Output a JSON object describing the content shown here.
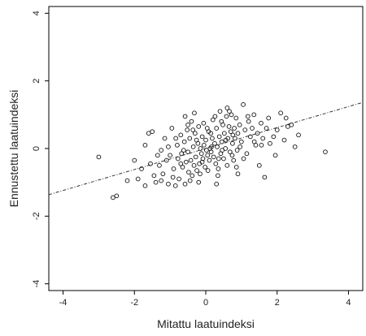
{
  "chart_data": {
    "type": "scatter",
    "title": "",
    "xlabel": "Mitattu laatuindeksi",
    "ylabel": "Ennustettu laatuindeksi",
    "xlim": [
      -4.4,
      4.4
    ],
    "ylim": [
      -4.2,
      4.2
    ],
    "xticks": [
      -4,
      -2,
      0,
      2,
      4
    ],
    "yticks": [
      -4,
      -2,
      0,
      2,
      4
    ],
    "xtick_labels": [
      "-4",
      "-2",
      "0",
      "2",
      "4"
    ],
    "ytick_labels": [
      "-4",
      "-2",
      "0",
      "2",
      "4"
    ],
    "grid": false,
    "legend": "none",
    "fit_line": {
      "slope": 0.31,
      "intercept": 0.0,
      "style": "dash-dot"
    },
    "points": [
      [
        -3.0,
        -0.25
      ],
      [
        -2.6,
        -1.45
      ],
      [
        -2.5,
        -1.4
      ],
      [
        -2.2,
        -0.95
      ],
      [
        -1.9,
        -0.9
      ],
      [
        -1.8,
        -0.6
      ],
      [
        -1.7,
        -1.1
      ],
      [
        -1.6,
        0.45
      ],
      [
        -1.5,
        0.5
      ],
      [
        -1.45,
        -0.8
      ],
      [
        -1.4,
        -1.0
      ],
      [
        -1.3,
        -0.5
      ],
      [
        -1.25,
        -0.05
      ],
      [
        -1.2,
        -0.75
      ],
      [
        -1.15,
        0.3
      ],
      [
        -1.1,
        -0.35
      ],
      [
        -1.05,
        -1.05
      ],
      [
        -1.0,
        -0.2
      ],
      [
        -0.95,
        0.6
      ],
      [
        -0.9,
        -0.6
      ],
      [
        -0.85,
        -1.1
      ],
      [
        -0.8,
        0.1
      ],
      [
        -0.78,
        -0.3
      ],
      [
        -0.75,
        -0.9
      ],
      [
        -0.7,
        0.4
      ],
      [
        -0.68,
        -0.15
      ],
      [
        -0.65,
        -0.55
      ],
      [
        -0.6,
        0.2
      ],
      [
        -0.58,
        -1.05
      ],
      [
        -0.55,
        -0.4
      ],
      [
        -0.52,
        0.55
      ],
      [
        -0.5,
        -0.1
      ],
      [
        -0.48,
        -0.7
      ],
      [
        -0.45,
        0.3
      ],
      [
        -0.42,
        -0.35
      ],
      [
        -0.4,
        0.8
      ],
      [
        -0.38,
        -0.8
      ],
      [
        -0.35,
        0.05
      ],
      [
        -0.33,
        -0.5
      ],
      [
        -0.3,
        0.45
      ],
      [
        -0.28,
        -0.25
      ],
      [
        -0.25,
        -0.65
      ],
      [
        -0.22,
        0.15
      ],
      [
        -0.2,
        0.65
      ],
      [
        -0.18,
        -0.45
      ],
      [
        -0.15,
        0.0
      ],
      [
        -0.12,
        -0.15
      ],
      [
        -0.1,
        0.35
      ],
      [
        -0.08,
        -0.3
      ],
      [
        -0.05,
        0.1
      ],
      [
        -0.02,
        -0.55
      ],
      [
        0.0,
        0.25
      ],
      [
        0.02,
        -0.05
      ],
      [
        0.05,
        -0.2
      ],
      [
        0.08,
        0.5
      ],
      [
        0.1,
        -0.35
      ],
      [
        0.12,
        0.0
      ],
      [
        0.15,
        -0.1
      ],
      [
        0.18,
        0.3
      ],
      [
        0.2,
        0.85
      ],
      [
        0.22,
        -0.25
      ],
      [
        0.25,
        0.15
      ],
      [
        0.28,
        -0.45
      ],
      [
        0.3,
        0.6
      ],
      [
        0.32,
        0.05
      ],
      [
        0.35,
        -0.6
      ],
      [
        0.38,
        0.35
      ],
      [
        0.4,
        1.1
      ],
      [
        0.42,
        -0.15
      ],
      [
        0.45,
        0.2
      ],
      [
        0.48,
        0.7
      ],
      [
        0.5,
        -0.3
      ],
      [
        0.52,
        0.45
      ],
      [
        0.55,
        0.0
      ],
      [
        0.58,
        0.95
      ],
      [
        0.6,
        -0.5
      ],
      [
        0.62,
        0.3
      ],
      [
        0.65,
        0.65
      ],
      [
        0.68,
        -0.1
      ],
      [
        0.7,
        0.5
      ],
      [
        0.72,
        1.0
      ],
      [
        0.75,
        0.15
      ],
      [
        0.78,
        -0.35
      ],
      [
        0.8,
        0.6
      ],
      [
        0.82,
        0.3
      ],
      [
        0.85,
        0.9
      ],
      [
        0.88,
        -0.05
      ],
      [
        0.9,
        0.45
      ],
      [
        0.95,
        0.7
      ],
      [
        1.0,
        0.2
      ],
      [
        1.05,
        1.3
      ],
      [
        1.1,
        0.55
      ],
      [
        1.15,
        -0.15
      ],
      [
        1.2,
        0.8
      ],
      [
        1.25,
        0.35
      ],
      [
        1.3,
        0.6
      ],
      [
        1.35,
        1.0
      ],
      [
        1.4,
        0.1
      ],
      [
        1.45,
        0.45
      ],
      [
        1.5,
        -0.5
      ],
      [
        1.55,
        0.75
      ],
      [
        1.6,
        0.3
      ],
      [
        1.65,
        -0.85
      ],
      [
        1.7,
        0.6
      ],
      [
        1.8,
        0.15
      ],
      [
        1.9,
        0.35
      ],
      [
        2.0,
        0.55
      ],
      [
        2.1,
        1.05
      ],
      [
        2.2,
        0.25
      ],
      [
        2.3,
        0.65
      ],
      [
        2.4,
        0.7
      ],
      [
        2.5,
        0.05
      ],
      [
        2.6,
        0.4
      ],
      [
        3.35,
        -0.1
      ],
      [
        -1.35,
        -0.2
      ],
      [
        -1.05,
        0.05
      ],
      [
        -0.62,
        -0.05
      ],
      [
        -0.36,
        0.55
      ],
      [
        -0.06,
        0.75
      ],
      [
        0.14,
        0.45
      ],
      [
        0.34,
        -0.8
      ],
      [
        0.56,
        0.25
      ],
      [
        0.74,
        -0.2
      ],
      [
        0.96,
        0.05
      ],
      [
        1.18,
        0.95
      ],
      [
        -0.92,
        -0.85
      ],
      [
        -0.44,
        -0.95
      ],
      [
        -0.16,
        -0.75
      ],
      [
        0.06,
        -0.65
      ],
      [
        0.26,
        0.95
      ],
      [
        0.44,
        0.8
      ],
      [
        0.66,
        1.1
      ],
      [
        -0.7,
        -0.45
      ],
      [
        -0.26,
        0.25
      ],
      [
        0.04,
        0.6
      ],
      [
        0.36,
        -0.3
      ],
      [
        0.86,
        -0.55
      ],
      [
        1.36,
        0.2
      ],
      [
        1.76,
        0.9
      ],
      [
        -1.55,
        -0.45
      ],
      [
        -1.25,
        -0.95
      ],
      [
        -0.84,
        0.3
      ],
      [
        -0.5,
        0.7
      ],
      [
        -0.1,
        -0.4
      ],
      [
        0.16,
        0.05
      ],
      [
        0.46,
        -0.05
      ],
      [
        0.76,
        0.4
      ],
      [
        1.06,
        -0.3
      ],
      [
        1.56,
        0.1
      ],
      [
        -2.0,
        -0.35
      ],
      [
        -1.7,
        0.1
      ],
      [
        -0.2,
        -1.0
      ],
      [
        0.3,
        -1.05
      ],
      [
        0.9,
        -0.75
      ],
      [
        1.95,
        -0.2
      ],
      [
        2.25,
        0.9
      ],
      [
        -0.58,
        0.95
      ],
      [
        0.6,
        1.2
      ],
      [
        -0.32,
        1.05
      ]
    ]
  }
}
